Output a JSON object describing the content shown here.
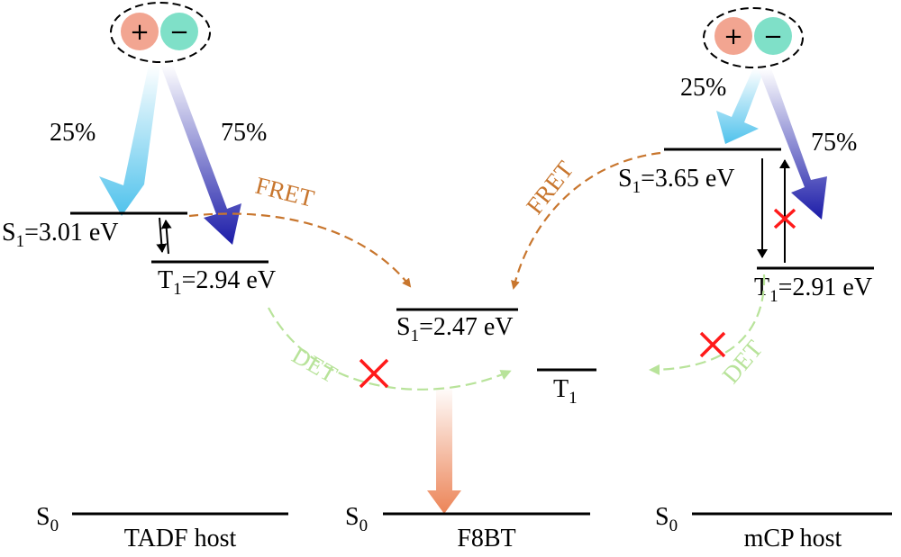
{
  "colors": {
    "hole": "#f2a591",
    "electron": "#7fe0c8",
    "fret": "#c8762e",
    "det": "#b8e39a",
    "singlet_arrow": "#4fc2ec",
    "triplet_arrow": "#1b1ba8",
    "emission_arrow": "#ec8457",
    "block": "#ff1a1a"
  },
  "icons": [
    "exciton-hole-plus-icon",
    "exciton-electron-minus-icon",
    "blocked-cross-icon"
  ],
  "tadf": {
    "exciton": {
      "hole": "+",
      "electron": "−"
    },
    "singlet_fraction": "25%",
    "triplet_fraction": "75%",
    "s1": {
      "main": "S",
      "sub": "1",
      "rest": "=3.01 eV"
    },
    "t1": {
      "main": "T",
      "sub": "1",
      "rest": "=2.94 eV"
    },
    "s0": {
      "main": "S",
      "sub": "0"
    },
    "name": "TADF host"
  },
  "f8bt": {
    "s1": {
      "main": "S",
      "sub": "1",
      "rest": "=2.47 eV"
    },
    "t1": {
      "main": "T",
      "sub": "1"
    },
    "s0": {
      "main": "S",
      "sub": "0"
    },
    "name": "F8BT"
  },
  "mcp": {
    "exciton": {
      "hole": "+",
      "electron": "−"
    },
    "singlet_fraction": "25%",
    "triplet_fraction": "75%",
    "s1": {
      "main": "S",
      "sub": "1",
      "rest": "=3.65 eV"
    },
    "t1": {
      "main": "T",
      "sub": "1",
      "rest": "=2.91 eV"
    },
    "s0": {
      "main": "S",
      "sub": "0"
    },
    "name": "mCP host"
  },
  "transfer": {
    "fret_left": "FRET",
    "fret_right": "FRET",
    "det_left": "DET",
    "det_right": "DET"
  }
}
